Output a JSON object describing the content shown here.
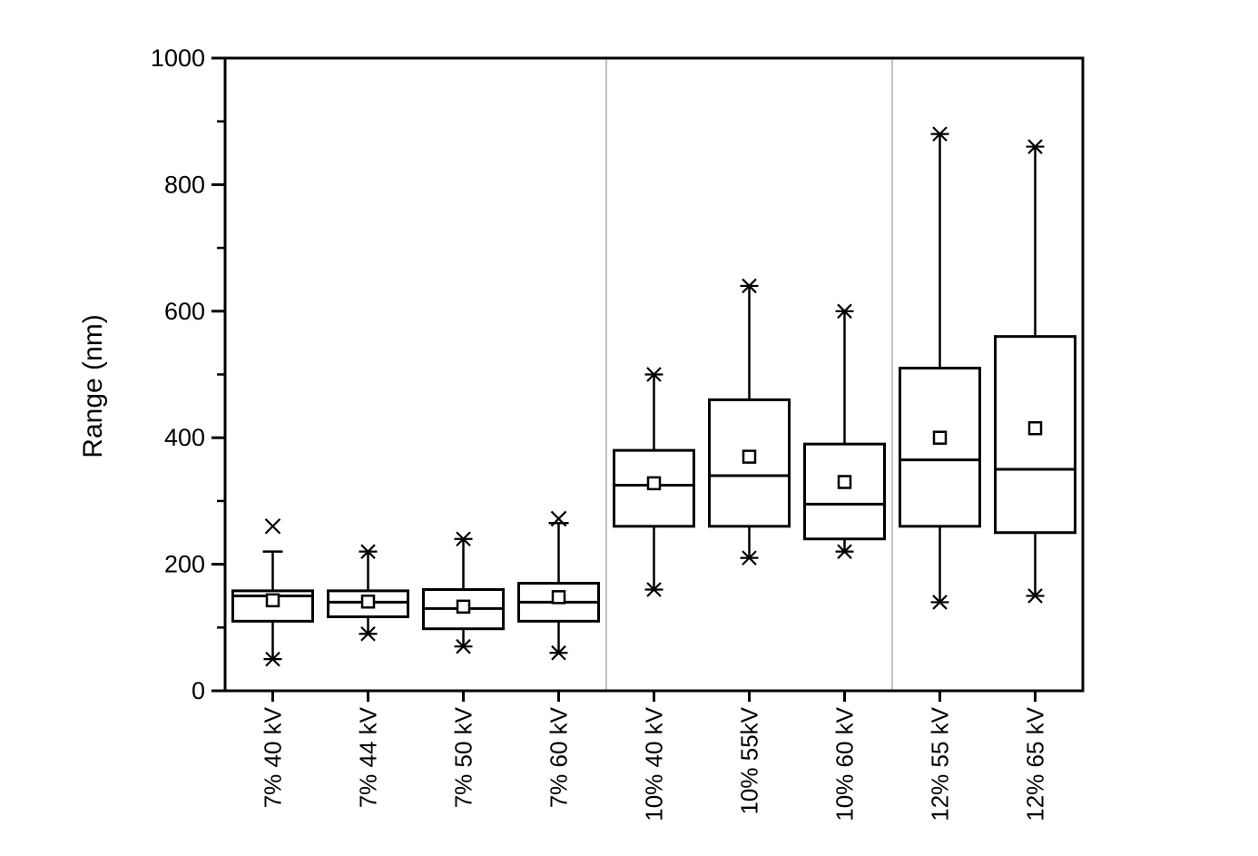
{
  "chart_data": {
    "type": "box",
    "title": "",
    "xlabel": "",
    "ylabel": "Range (nm)",
    "ylim": [
      0,
      1000
    ],
    "y_major_ticks": [
      0,
      200,
      400,
      600,
      800,
      1000
    ],
    "y_minor_ticks": [
      100,
      300,
      500,
      700,
      900
    ],
    "grid": false,
    "frame": true,
    "legend": "none",
    "line_color": "#000000",
    "background_color": "#ffffff",
    "divider_color": "#c2c2c2",
    "group_divider_after_indices": [
      3,
      6
    ],
    "categories": [
      "7% 40 kV",
      "7% 44 kV",
      "7% 50 kV",
      "7% 60 kV",
      "10% 40 kV",
      "10% 55kV",
      "10% 60 kV",
      "12% 55 kV",
      "12% 65 kV"
    ],
    "boxes": [
      {
        "label": "7% 40 kV",
        "whisker_low": 50,
        "q1": 110,
        "median": 150,
        "q3": 158,
        "whisker_high": 220,
        "mean": 143,
        "low_marker": "star",
        "high_marker": "none",
        "high_cap": true,
        "outliers_high": [
          260
        ]
      },
      {
        "label": "7% 44 kV",
        "whisker_low": 90,
        "q1": 117,
        "median": 140,
        "q3": 158,
        "whisker_high": 220,
        "mean": 141,
        "low_marker": "star",
        "high_marker": "star",
        "high_cap": false,
        "outliers_high": []
      },
      {
        "label": "7% 50 kV",
        "whisker_low": 70,
        "q1": 98,
        "median": 130,
        "q3": 160,
        "whisker_high": 240,
        "mean": 133,
        "low_marker": "star",
        "high_marker": "star",
        "high_cap": false,
        "outliers_high": []
      },
      {
        "label": "7% 60 kV",
        "whisker_low": 60,
        "q1": 110,
        "median": 140,
        "q3": 170,
        "whisker_high": 265,
        "mean": 148,
        "low_marker": "star",
        "high_marker": "none",
        "high_cap": true,
        "outliers_high": [
          272
        ]
      },
      {
        "label": "10% 40 kV",
        "whisker_low": 160,
        "q1": 260,
        "median": 325,
        "q3": 380,
        "whisker_high": 500,
        "mean": 328,
        "low_marker": "star",
        "high_marker": "star",
        "high_cap": false,
        "outliers_high": []
      },
      {
        "label": "10% 55kV",
        "whisker_low": 210,
        "q1": 260,
        "median": 340,
        "q3": 460,
        "whisker_high": 640,
        "mean": 370,
        "low_marker": "star",
        "high_marker": "star",
        "high_cap": false,
        "outliers_high": []
      },
      {
        "label": "10% 60 kV",
        "whisker_low": 220,
        "q1": 240,
        "median": 295,
        "q3": 390,
        "whisker_high": 600,
        "mean": 330,
        "low_marker": "star",
        "high_marker": "star",
        "high_cap": false,
        "outliers_high": []
      },
      {
        "label": "12% 55 kV",
        "whisker_low": 140,
        "q1": 260,
        "median": 365,
        "q3": 510,
        "whisker_high": 880,
        "mean": 400,
        "low_marker": "star",
        "high_marker": "star",
        "high_cap": false,
        "outliers_high": []
      },
      {
        "label": "12% 65 kV",
        "whisker_low": 150,
        "q1": 250,
        "median": 350,
        "q3": 560,
        "whisker_high": 860,
        "mean": 415,
        "low_marker": "star",
        "high_marker": "star",
        "high_cap": false,
        "outliers_high": []
      }
    ]
  }
}
